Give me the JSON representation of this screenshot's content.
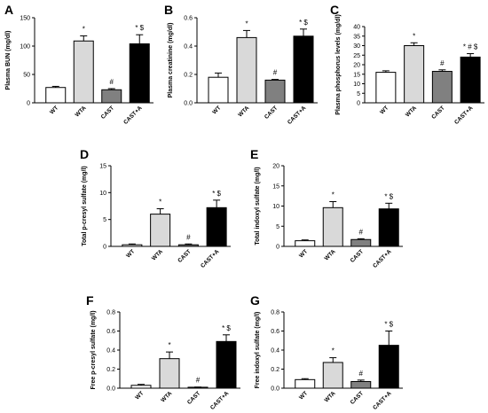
{
  "colors": {
    "WT": "#ffffff",
    "WTA": "#d9d9d9",
    "CAST": "#808080",
    "CAST+A": "#000000",
    "outline": "#000000"
  },
  "chart_data": [
    {
      "panel": "A",
      "type": "bar",
      "ylabel": "Plasma BUN (mg/dl)",
      "categories": [
        "WT",
        "WTA",
        "CAST",
        "CAST+A"
      ],
      "values": [
        27,
        109,
        23,
        104
      ],
      "errors": [
        2,
        9,
        2,
        16
      ],
      "annotations": [
        "",
        "*",
        "#",
        "* $"
      ],
      "ylim": [
        0,
        150
      ],
      "yticks": [
        0,
        50,
        100,
        150
      ]
    },
    {
      "panel": "B",
      "type": "bar",
      "ylabel": "Plasma creatinine (mg/dl)",
      "categories": [
        "WT",
        "WTA",
        "CAST",
        "CAST+A"
      ],
      "values": [
        0.18,
        0.46,
        0.16,
        0.47
      ],
      "errors": [
        0.03,
        0.05,
        0.005,
        0.05
      ],
      "annotations": [
        "",
        "*",
        "#",
        "* $"
      ],
      "ylim": [
        0,
        0.6
      ],
      "yticks": [
        0.0,
        0.2,
        0.4,
        0.6
      ]
    },
    {
      "panel": "C",
      "type": "bar",
      "ylabel": "Plasma phosphorus levels (mg/dl)",
      "categories": [
        "WT",
        "WTA",
        "CAST",
        "CAST+A"
      ],
      "values": [
        16,
        30,
        16.5,
        24
      ],
      "errors": [
        0.8,
        1.5,
        0.8,
        1.8
      ],
      "annotations": [
        "",
        "*",
        "#",
        "* # $"
      ],
      "ylim": [
        0,
        40
      ],
      "yticks": [
        0,
        5,
        10,
        15,
        20,
        25,
        30,
        35,
        40
      ]
    },
    {
      "panel": "D",
      "type": "bar",
      "ylabel": "Total p-cresyl sulfate (mg/l)",
      "categories": [
        "WT",
        "WTA",
        "CAST",
        "CAST+A"
      ],
      "values": [
        0.3,
        6,
        0.3,
        7.2
      ],
      "errors": [
        0.15,
        1.0,
        0.15,
        1.4
      ],
      "annotations": [
        "",
        "*",
        "#",
        "* $"
      ],
      "ylim": [
        0,
        15
      ],
      "yticks": [
        0,
        5,
        10,
        15
      ]
    },
    {
      "panel": "E",
      "type": "bar",
      "ylabel": "Total indoxyl sulfate (mg/l)",
      "categories": [
        "WT",
        "WTA",
        "CAST",
        "CAST+A"
      ],
      "values": [
        1.4,
        9.6,
        1.7,
        9.3
      ],
      "errors": [
        0.2,
        1.5,
        0.2,
        1.4
      ],
      "annotations": [
        "",
        "*",
        "#",
        "* $"
      ],
      "ylim": [
        0,
        20
      ],
      "yticks": [
        0,
        5,
        10,
        15,
        20
      ]
    },
    {
      "panel": "F",
      "type": "bar",
      "ylabel": "Free p-cresyl sulfate (mg/l)",
      "categories": [
        "WT",
        "WTA",
        "CAST",
        "CAST+A"
      ],
      "values": [
        0.03,
        0.31,
        0.01,
        0.49
      ],
      "errors": [
        0.01,
        0.07,
        0.002,
        0.07
      ],
      "annotations": [
        "",
        "*",
        "#",
        "* $"
      ],
      "ylim": [
        0,
        0.8
      ],
      "yticks": [
        0.0,
        0.2,
        0.4,
        0.6,
        0.8
      ]
    },
    {
      "panel": "G",
      "type": "bar",
      "ylabel": "Free indoxyl sulfate (mg/l)",
      "categories": [
        "WT",
        "WTA",
        "CAST",
        "CAST+A"
      ],
      "values": [
        0.09,
        0.27,
        0.07,
        0.45
      ],
      "errors": [
        0.01,
        0.05,
        0.015,
        0.15
      ],
      "annotations": [
        "",
        "*",
        "#",
        "* $"
      ],
      "ylim": [
        0,
        0.8
      ],
      "yticks": [
        0.0,
        0.2,
        0.4,
        0.6,
        0.8
      ]
    }
  ]
}
